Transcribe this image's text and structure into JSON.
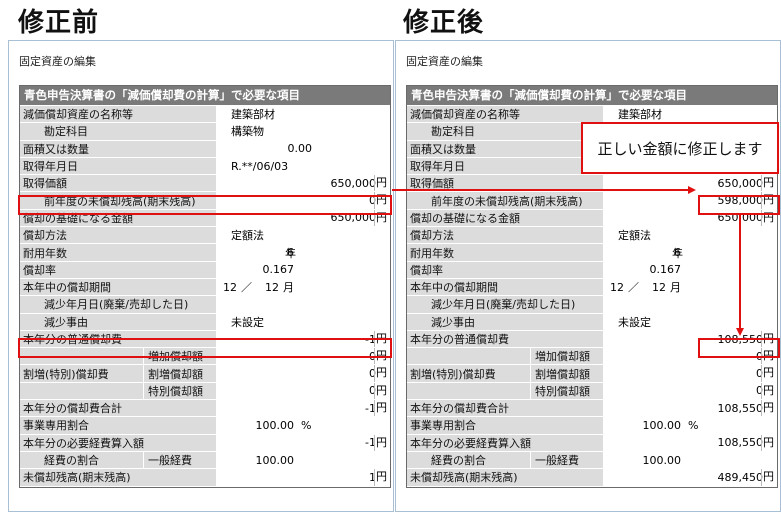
{
  "headings": {
    "before": "修正前",
    "after": "修正後"
  },
  "crumb": "固定資産の編集",
  "form_title": "青色申告決算書の「減価償却費の計算」で必要な項目",
  "callout": "正しい金額に修正します",
  "units": {
    "yen": "円",
    "year": "年",
    "month": "月",
    "percent": "%"
  },
  "fields": {
    "name_label": "減価償却資産の名称等",
    "name_value": "建築部材",
    "account_label": "勘定科目",
    "account_value": "構築物",
    "quantity_label": "面積又は数量",
    "acq_date_label": "取得年月日",
    "acq_price_label": "取得価額",
    "prev_balance_label": "前年度の未償却残高(期末残高)",
    "basis_label": "償却の基礎になる金額",
    "method_label": "償却方法",
    "method_value": "定額法",
    "life_label": "耐用年数",
    "life_value": "6",
    "rate_label": "償却率",
    "rate_value": "0.167",
    "period_label": "本年中の償却期間",
    "period_month": "12",
    "period_sep": "／",
    "period_total": "12",
    "reduce_date_label": "減少年月日(廃棄/売却した日)",
    "reduce_reason_label": "減少事由",
    "reduce_reason_value": "未設定",
    "normal_dep_label": "本年分の普通償却費",
    "special_label": "割増(特別)償却費",
    "inc_label": "増加償却額",
    "extra_label": "割増償却額",
    "sp_label": "特別償却額",
    "total_dep_label": "本年分の償却費合計",
    "biz_ratio_label": "事業専用割合",
    "biz_ratio_value": "100.00",
    "expense_label": "本年分の必要経費算入額",
    "expense_ratio_label": "経費の割合",
    "general_label": "一般経費",
    "general_value": "100.00",
    "remaining_label": "未償却残高(期末残高)"
  },
  "before": {
    "quantity": "0.00",
    "acq_date": "R.**/06/03",
    "acq_price": "650,000",
    "prev_balance": "0",
    "basis": "650,000",
    "normal_dep": "-1",
    "inc": "0",
    "extra": "0",
    "sp": "0",
    "total_dep": "-1",
    "expense": "-1",
    "remaining": "1"
  },
  "after": {
    "acq_price": "650,000",
    "prev_balance": "598,000",
    "basis": "650,000",
    "normal_dep": "108,550",
    "inc": "0",
    "extra": "0",
    "sp": "0",
    "total_dep": "108,550",
    "expense": "108,550",
    "remaining": "489,450"
  },
  "colors": {
    "accent_red": "#e01010",
    "form_header": "#7a7a7a",
    "label_bg": "#dcdcdc"
  }
}
